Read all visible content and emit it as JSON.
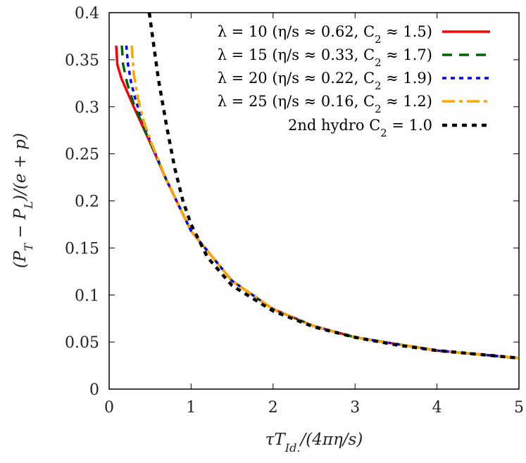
{
  "chart_data": {
    "type": "line",
    "xlabel": "τT_{Id.}/(4πη/s)",
    "ylabel": "(P_T − P_L)/(e + p)",
    "xlim": [
      0,
      5
    ],
    "ylim": [
      0,
      0.4
    ],
    "xticks": [
      "0",
      "1",
      "2",
      "3",
      "4",
      "5"
    ],
    "yticks": [
      "0",
      "0.05",
      "0.1",
      "0.15",
      "0.2",
      "0.25",
      "0.3",
      "0.35",
      "0.4"
    ],
    "grid": false,
    "legend_position": "top-right",
    "series": [
      {
        "name": "λ = 10 (η/s ≈ 0.62, C_2 ≈ 1.5)",
        "color": "#ff0000",
        "dash": "solid",
        "x": [
          0.086,
          0.1,
          0.15,
          0.3,
          0.5,
          0.7,
          1.0,
          1.5,
          2,
          2.5,
          3,
          3.5,
          4,
          4.5,
          5
        ],
        "y": [
          0.365,
          0.345,
          0.33,
          0.3,
          0.262,
          0.222,
          0.168,
          0.115,
          0.085,
          0.067,
          0.055,
          0.048,
          0.041,
          0.037,
          0.033
        ]
      },
      {
        "name": "λ = 15 (η/s ≈ 0.33, C_2 ≈ 1.7)",
        "color": "#006400",
        "dash": "long-dash",
        "x": [
          0.155,
          0.17,
          0.22,
          0.3,
          0.5,
          0.7,
          1.0,
          1.5,
          2,
          2.5,
          3,
          3.5,
          4,
          4.5,
          5
        ],
        "y": [
          0.365,
          0.345,
          0.325,
          0.303,
          0.262,
          0.222,
          0.168,
          0.115,
          0.085,
          0.067,
          0.055,
          0.048,
          0.041,
          0.037,
          0.033
        ]
      },
      {
        "name": "λ = 20 (η/s ≈ 0.22, C_2 ≈ 1.9)",
        "color": "#0000ff",
        "dash": "short-dash",
        "x": [
          0.21,
          0.23,
          0.27,
          0.33,
          0.5,
          0.7,
          1.0,
          1.5,
          2,
          2.5,
          3,
          3.5,
          4,
          4.5,
          5
        ],
        "y": [
          0.365,
          0.345,
          0.325,
          0.305,
          0.264,
          0.222,
          0.168,
          0.115,
          0.085,
          0.067,
          0.055,
          0.048,
          0.041,
          0.037,
          0.033
        ]
      },
      {
        "name": "λ = 25 (η/s ≈ 0.16, C_2 ≈ 1.2)",
        "color": "#ffa500",
        "dash": "dash-dot",
        "x": [
          0.275,
          0.3,
          0.35,
          0.42,
          0.5,
          0.7,
          1.0,
          1.5,
          2,
          2.5,
          3,
          3.5,
          4,
          4.5,
          5
        ],
        "y": [
          0.365,
          0.335,
          0.31,
          0.285,
          0.265,
          0.222,
          0.168,
          0.115,
          0.085,
          0.067,
          0.055,
          0.048,
          0.041,
          0.037,
          0.033
        ]
      },
      {
        "name": "2nd hydro C_2 = 1.0",
        "color": "#000000",
        "dash": "dotted",
        "x": [
          0.49,
          0.6,
          0.7,
          0.8,
          0.9,
          1.0,
          1.2,
          1.5,
          2,
          2.5,
          3,
          3.5,
          4,
          4.5,
          5
        ],
        "y": [
          0.4,
          0.33,
          0.28,
          0.235,
          0.2,
          0.175,
          0.14,
          0.11,
          0.083,
          0.066,
          0.055,
          0.047,
          0.041,
          0.037,
          0.033
        ]
      }
    ]
  }
}
